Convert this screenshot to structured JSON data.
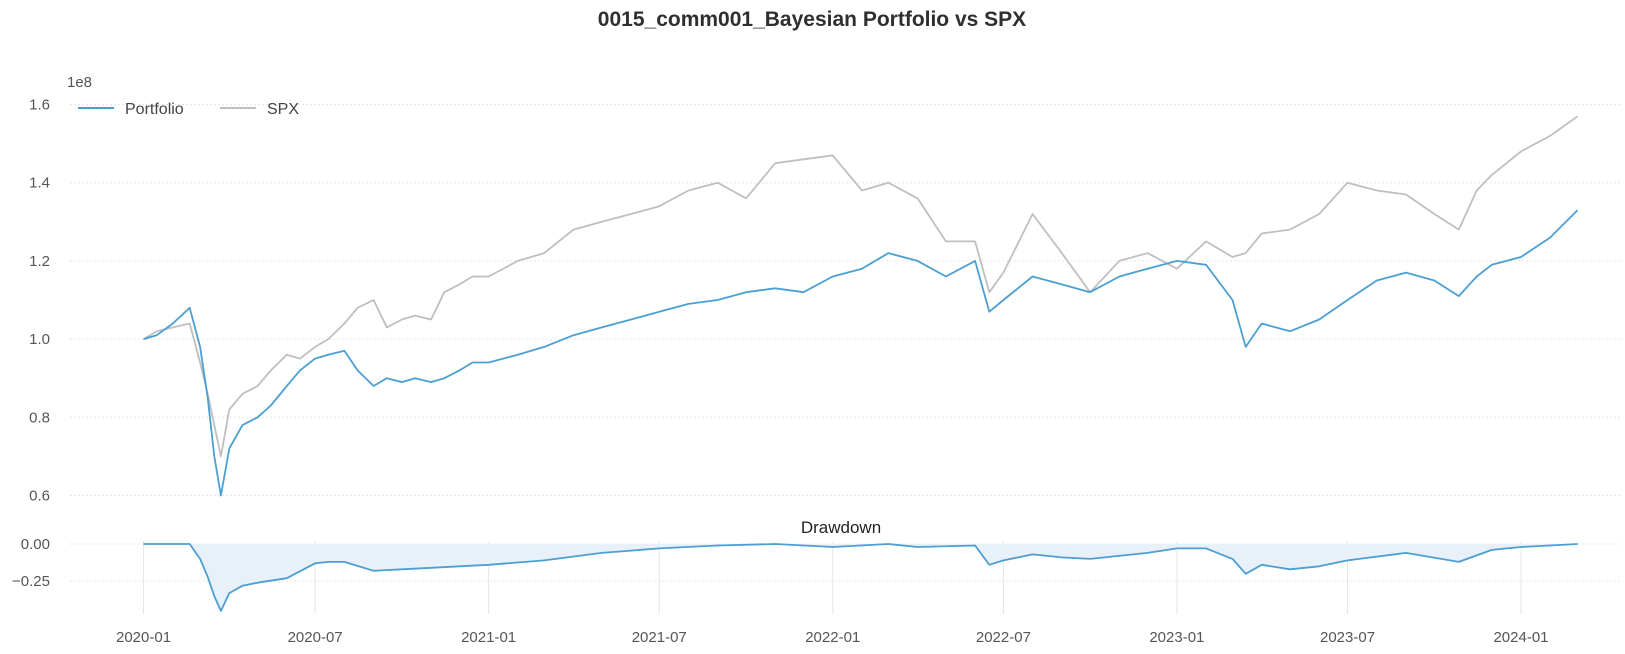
{
  "chart_data": [
    {
      "type": "line",
      "title": "0015_comm001_Bayesian Portfolio vs SPX",
      "y_multiplier_label": "1e8",
      "x_ticks": [
        "2020-01",
        "2020-07",
        "2021-01",
        "2021-07",
        "2022-01",
        "2022-07",
        "2023-01",
        "2023-07",
        "2024-01"
      ],
      "y_ticks": [
        "0.6",
        "0.8",
        "1.0",
        "1.2",
        "1.4",
        "1.6"
      ],
      "ylim": [
        0.55,
        1.65
      ],
      "xlim": [
        "2019-10-15",
        "2024-04-15"
      ],
      "grid": true,
      "legend_position": "top-left",
      "series": [
        {
          "name": "Portfolio",
          "color": "#4c9fd1",
          "x": [
            "2020-01-01",
            "2020-01-15",
            "2020-02-01",
            "2020-02-19",
            "2020-03-01",
            "2020-03-09",
            "2020-03-16",
            "2020-03-23",
            "2020-04-01",
            "2020-04-15",
            "2020-05-01",
            "2020-05-15",
            "2020-06-01",
            "2020-06-15",
            "2020-07-01",
            "2020-07-15",
            "2020-08-01",
            "2020-08-15",
            "2020-09-01",
            "2020-09-15",
            "2020-10-01",
            "2020-10-15",
            "2020-11-01",
            "2020-11-15",
            "2020-12-01",
            "2020-12-15",
            "2021-01-01",
            "2021-02-01",
            "2021-03-01",
            "2021-04-01",
            "2021-05-01",
            "2021-06-01",
            "2021-07-01",
            "2021-08-01",
            "2021-09-01",
            "2021-10-01",
            "2021-11-01",
            "2021-12-01",
            "2022-01-01",
            "2022-02-01",
            "2022-03-01",
            "2022-04-01",
            "2022-05-01",
            "2022-06-01",
            "2022-06-16",
            "2022-07-01",
            "2022-08-01",
            "2022-09-01",
            "2022-10-01",
            "2022-11-01",
            "2022-12-01",
            "2023-01-01",
            "2023-02-01",
            "2023-03-01",
            "2023-03-15",
            "2023-04-01",
            "2023-05-01",
            "2023-06-01",
            "2023-07-01",
            "2023-08-01",
            "2023-09-01",
            "2023-10-01",
            "2023-10-27",
            "2023-11-15",
            "2023-12-01",
            "2024-01-01",
            "2024-02-01",
            "2024-03-01"
          ],
          "values": [
            1.0,
            1.01,
            1.04,
            1.08,
            0.98,
            0.85,
            0.7,
            0.6,
            0.72,
            0.78,
            0.8,
            0.83,
            0.88,
            0.92,
            0.95,
            0.96,
            0.97,
            0.92,
            0.88,
            0.9,
            0.89,
            0.9,
            0.89,
            0.9,
            0.92,
            0.94,
            0.94,
            0.96,
            0.98,
            1.01,
            1.03,
            1.05,
            1.07,
            1.09,
            1.1,
            1.12,
            1.13,
            1.12,
            1.16,
            1.18,
            1.22,
            1.2,
            1.16,
            1.2,
            1.07,
            1.1,
            1.16,
            1.14,
            1.12,
            1.16,
            1.18,
            1.2,
            1.19,
            1.1,
            0.98,
            1.04,
            1.02,
            1.05,
            1.1,
            1.15,
            1.17,
            1.15,
            1.11,
            1.16,
            1.19,
            1.21,
            1.26,
            1.33
          ]
        },
        {
          "name": "SPX",
          "color": "#bfbfbf",
          "x": [
            "2020-01-01",
            "2020-01-15",
            "2020-02-01",
            "2020-02-19",
            "2020-03-01",
            "2020-03-09",
            "2020-03-16",
            "2020-03-23",
            "2020-04-01",
            "2020-04-15",
            "2020-05-01",
            "2020-05-15",
            "2020-06-01",
            "2020-06-15",
            "2020-07-01",
            "2020-07-15",
            "2020-08-01",
            "2020-08-15",
            "2020-09-01",
            "2020-09-15",
            "2020-10-01",
            "2020-10-15",
            "2020-11-01",
            "2020-11-15",
            "2020-12-01",
            "2020-12-15",
            "2021-01-01",
            "2021-02-01",
            "2021-03-01",
            "2021-04-01",
            "2021-05-01",
            "2021-06-01",
            "2021-07-01",
            "2021-08-01",
            "2021-09-01",
            "2021-10-01",
            "2021-11-01",
            "2021-12-01",
            "2022-01-01",
            "2022-02-01",
            "2022-03-01",
            "2022-04-01",
            "2022-05-01",
            "2022-06-01",
            "2022-06-16",
            "2022-07-01",
            "2022-08-01",
            "2022-09-01",
            "2022-10-01",
            "2022-11-01",
            "2022-12-01",
            "2023-01-01",
            "2023-02-01",
            "2023-03-01",
            "2023-03-15",
            "2023-04-01",
            "2023-05-01",
            "2023-06-01",
            "2023-07-01",
            "2023-08-01",
            "2023-09-01",
            "2023-10-01",
            "2023-10-27",
            "2023-11-15",
            "2023-12-01",
            "2024-01-01",
            "2024-02-01",
            "2024-03-01"
          ],
          "values": [
            1.0,
            1.02,
            1.03,
            1.04,
            0.94,
            0.86,
            0.78,
            0.7,
            0.82,
            0.86,
            0.88,
            0.92,
            0.96,
            0.95,
            0.98,
            1.0,
            1.04,
            1.08,
            1.1,
            1.03,
            1.05,
            1.06,
            1.05,
            1.12,
            1.14,
            1.16,
            1.16,
            1.2,
            1.22,
            1.28,
            1.3,
            1.32,
            1.34,
            1.38,
            1.4,
            1.36,
            1.45,
            1.46,
            1.47,
            1.38,
            1.4,
            1.36,
            1.25,
            1.25,
            1.12,
            1.17,
            1.32,
            1.22,
            1.12,
            1.2,
            1.22,
            1.18,
            1.25,
            1.21,
            1.22,
            1.27,
            1.28,
            1.32,
            1.4,
            1.38,
            1.37,
            1.32,
            1.28,
            1.38,
            1.42,
            1.48,
            1.52,
            1.57
          ]
        }
      ]
    },
    {
      "type": "area",
      "title": "Drawdown",
      "series_color": "#4c9fd1",
      "fill_color": "#e8f1fa",
      "y_ticks": [
        "0.00",
        "−0.25"
      ],
      "y_tick_values": [
        0,
        -0.25
      ],
      "ylim": [
        -0.47,
        0.02
      ],
      "x_ticks": [
        "2020-01",
        "2020-07",
        "2021-01",
        "2021-07",
        "2022-01",
        "2022-07",
        "2023-01",
        "2023-07",
        "2024-01"
      ],
      "x": [
        "2020-01-01",
        "2020-02-19",
        "2020-03-01",
        "2020-03-09",
        "2020-03-16",
        "2020-03-23",
        "2020-04-01",
        "2020-04-15",
        "2020-05-01",
        "2020-06-01",
        "2020-07-01",
        "2020-07-15",
        "2020-08-01",
        "2020-09-01",
        "2020-10-01",
        "2020-11-01",
        "2020-12-01",
        "2021-01-01",
        "2021-03-01",
        "2021-05-01",
        "2021-07-01",
        "2021-09-01",
        "2021-11-01",
        "2022-01-01",
        "2022-03-01",
        "2022-04-01",
        "2022-06-01",
        "2022-06-16",
        "2022-07-01",
        "2022-08-01",
        "2022-09-01",
        "2022-10-01",
        "2022-12-01",
        "2023-01-01",
        "2023-02-01",
        "2023-03-01",
        "2023-03-15",
        "2023-04-01",
        "2023-05-01",
        "2023-06-01",
        "2023-07-01",
        "2023-09-01",
        "2023-10-27",
        "2023-12-01",
        "2024-01-01",
        "2024-03-01"
      ],
      "values": [
        0.0,
        0.0,
        -0.1,
        -0.22,
        -0.35,
        -0.45,
        -0.33,
        -0.28,
        -0.26,
        -0.23,
        -0.13,
        -0.12,
        -0.12,
        -0.18,
        -0.17,
        -0.16,
        -0.15,
        -0.14,
        -0.11,
        -0.06,
        -0.03,
        -0.01,
        0.0,
        -0.02,
        0.0,
        -0.02,
        -0.01,
        -0.14,
        -0.11,
        -0.07,
        -0.09,
        -0.1,
        -0.06,
        -0.03,
        -0.03,
        -0.1,
        -0.2,
        -0.14,
        -0.17,
        -0.15,
        -0.11,
        -0.06,
        -0.12,
        -0.04,
        -0.02,
        0.0
      ]
    }
  ]
}
